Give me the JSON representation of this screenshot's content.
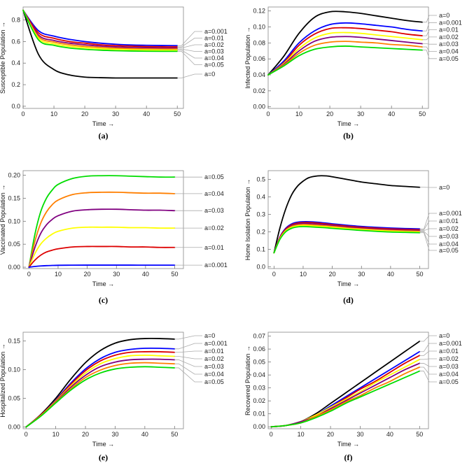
{
  "chart_data": [
    {
      "type": "line",
      "panel": "(a)",
      "xlabel": "Time →",
      "ylabel": "Susceptible Population →",
      "xlim": [
        0,
        52
      ],
      "ylim": [
        -0.02,
        0.92
      ],
      "xticks": [
        0,
        10,
        20,
        30,
        40,
        50
      ],
      "yticks": [
        0.0,
        0.2,
        0.4,
        0.6,
        0.8
      ],
      "ytick_labels": [
        "0.0",
        "0.2",
        "0.4",
        "0.6",
        "0.8"
      ],
      "x": [
        0,
        5,
        10,
        15,
        20,
        25,
        30,
        35,
        40,
        45,
        50
      ],
      "series": [
        {
          "name": "a=0",
          "color": "#000000",
          "values": [
            0.89,
            0.48,
            0.34,
            0.29,
            0.27,
            0.265,
            0.262,
            0.262,
            0.262,
            0.262,
            0.262
          ]
        },
        {
          "name": "a=0.001",
          "color": "#0000ff",
          "values": [
            0.89,
            0.7,
            0.65,
            0.62,
            0.6,
            0.585,
            0.575,
            0.568,
            0.565,
            0.563,
            0.562
          ]
        },
        {
          "name": "a=0.01",
          "color": "#dd0000",
          "values": [
            0.89,
            0.68,
            0.63,
            0.6,
            0.585,
            0.57,
            0.562,
            0.557,
            0.553,
            0.551,
            0.55
          ]
        },
        {
          "name": "a=0.02",
          "color": "#800080",
          "values": [
            0.89,
            0.66,
            0.61,
            0.585,
            0.57,
            0.558,
            0.55,
            0.545,
            0.542,
            0.54,
            0.54
          ]
        },
        {
          "name": "a=0.03",
          "color": "#ff7f00",
          "values": [
            0.89,
            0.645,
            0.595,
            0.57,
            0.555,
            0.545,
            0.538,
            0.534,
            0.531,
            0.53,
            0.53
          ]
        },
        {
          "name": "a=0.04",
          "color": "#ffff00",
          "values": [
            0.89,
            0.63,
            0.58,
            0.555,
            0.542,
            0.533,
            0.527,
            0.523,
            0.521,
            0.52,
            0.52
          ]
        },
        {
          "name": "a=0.05",
          "color": "#00dd00",
          "values": [
            0.89,
            0.615,
            0.565,
            0.54,
            0.528,
            0.52,
            0.515,
            0.512,
            0.51,
            0.509,
            0.509
          ]
        }
      ]
    },
    {
      "type": "line",
      "panel": "(b)",
      "xlabel": "Time →",
      "ylabel": "Infected Population →",
      "xlim": [
        0,
        52
      ],
      "ylim": [
        -0.002,
        0.125
      ],
      "xticks": [
        0,
        10,
        20,
        30,
        40,
        50
      ],
      "yticks": [
        0.0,
        0.02,
        0.04,
        0.06,
        0.08,
        0.1,
        0.12
      ],
      "ytick_labels": [
        "0.00",
        "0.02",
        "0.04",
        "0.06",
        "0.08",
        "0.10",
        "0.12"
      ],
      "x": [
        0,
        5,
        10,
        15,
        20,
        25,
        30,
        35,
        40,
        45,
        50
      ],
      "series": [
        {
          "name": "a=0",
          "color": "#000000",
          "values": [
            0.04,
            0.063,
            0.092,
            0.112,
            0.119,
            0.119,
            0.117,
            0.114,
            0.111,
            0.108,
            0.106
          ]
        },
        {
          "name": "a=0.001",
          "color": "#0000ff",
          "values": [
            0.04,
            0.057,
            0.08,
            0.095,
            0.103,
            0.105,
            0.104,
            0.102,
            0.1,
            0.097,
            0.095
          ]
        },
        {
          "name": "a=0.01",
          "color": "#dd0000",
          "values": [
            0.04,
            0.055,
            0.077,
            0.091,
            0.098,
            0.099,
            0.098,
            0.096,
            0.094,
            0.091,
            0.089
          ]
        },
        {
          "name": "a=0.02",
          "color": "#ffff00",
          "values": [
            0.04,
            0.054,
            0.073,
            0.086,
            0.092,
            0.093,
            0.092,
            0.09,
            0.088,
            0.086,
            0.084
          ]
        },
        {
          "name": "a=0.03",
          "color": "#800080",
          "values": [
            0.04,
            0.053,
            0.07,
            0.082,
            0.087,
            0.088,
            0.087,
            0.085,
            0.083,
            0.081,
            0.079
          ]
        },
        {
          "name": "a=0.04",
          "color": "#ff7f00",
          "values": [
            0.04,
            0.052,
            0.067,
            0.077,
            0.081,
            0.082,
            0.081,
            0.08,
            0.078,
            0.077,
            0.075
          ]
        },
        {
          "name": "a=0.05",
          "color": "#00dd00",
          "values": [
            0.04,
            0.051,
            0.064,
            0.072,
            0.075,
            0.076,
            0.075,
            0.074,
            0.073,
            0.072,
            0.071
          ]
        }
      ]
    },
    {
      "type": "line",
      "panel": "(c)",
      "xlabel": "Time →",
      "ylabel": "Vaccinated Population →",
      "xlim": [
        -2,
        53
      ],
      "ylim": [
        -0.003,
        0.21
      ],
      "xticks": [
        0,
        10,
        20,
        30,
        40,
        50
      ],
      "yticks": [
        0.0,
        0.05,
        0.1,
        0.15,
        0.2
      ],
      "ytick_labels": [
        "0.00",
        "0.05",
        "0.10",
        "0.15",
        "0.20"
      ],
      "x": [
        0,
        2,
        4,
        6,
        8,
        10,
        15,
        20,
        25,
        30,
        35,
        40,
        45,
        50
      ],
      "series": [
        {
          "name": "a=0.05",
          "color": "#00dd00",
          "values": [
            0,
            0.07,
            0.12,
            0.15,
            0.168,
            0.18,
            0.193,
            0.198,
            0.199,
            0.199,
            0.198,
            0.197,
            0.196,
            0.196
          ]
        },
        {
          "name": "a=0.04",
          "color": "#ff7f00",
          "values": [
            0,
            0.055,
            0.095,
            0.12,
            0.136,
            0.146,
            0.158,
            0.162,
            0.163,
            0.163,
            0.162,
            0.161,
            0.161,
            0.16
          ]
        },
        {
          "name": "a=0.03",
          "color": "#800080",
          "values": [
            0,
            0.042,
            0.073,
            0.092,
            0.104,
            0.112,
            0.122,
            0.125,
            0.126,
            0.126,
            0.125,
            0.124,
            0.124,
            0.123
          ]
        },
        {
          "name": "a=0.02",
          "color": "#ffff00",
          "values": [
            0,
            0.029,
            0.05,
            0.063,
            0.072,
            0.078,
            0.085,
            0.087,
            0.087,
            0.087,
            0.086,
            0.086,
            0.085,
            0.085
          ]
        },
        {
          "name": "a=0.01",
          "color": "#dd0000",
          "values": [
            0,
            0.015,
            0.026,
            0.033,
            0.037,
            0.04,
            0.044,
            0.045,
            0.045,
            0.045,
            0.044,
            0.044,
            0.043,
            0.043
          ]
        },
        {
          "name": "a=0.001",
          "color": "#0000ff",
          "values": [
            0,
            0.0015,
            0.0027,
            0.0034,
            0.0038,
            0.0041,
            0.0044,
            0.0045,
            0.0045,
            0.0045,
            0.0045,
            0.0044,
            0.0044,
            0.0044
          ]
        }
      ]
    },
    {
      "type": "line",
      "panel": "(d)",
      "xlabel": "Time →",
      "ylabel": "Home Isolation Population →",
      "xlim": [
        -2,
        53
      ],
      "ylim": [
        -0.01,
        0.55
      ],
      "xticks": [
        0,
        10,
        20,
        30,
        40,
        50
      ],
      "yticks": [
        0.0,
        0.1,
        0.2,
        0.3,
        0.4,
        0.5
      ],
      "ytick_labels": [
        "0.0",
        "0.1",
        "0.2",
        "0.3",
        "0.4",
        "0.5"
      ],
      "x": [
        0,
        2,
        4,
        6,
        8,
        10,
        12,
        15,
        18,
        20,
        25,
        30,
        35,
        40,
        45,
        50
      ],
      "series": [
        {
          "name": "a=0",
          "color": "#000000",
          "values": [
            0.08,
            0.22,
            0.33,
            0.41,
            0.46,
            0.49,
            0.51,
            0.52,
            0.52,
            0.515,
            0.5,
            0.485,
            0.475,
            0.465,
            0.46,
            0.455
          ]
        },
        {
          "name": "a=0.001",
          "color": "#0000ff",
          "values": [
            0.08,
            0.17,
            0.22,
            0.245,
            0.255,
            0.258,
            0.258,
            0.255,
            0.25,
            0.246,
            0.238,
            0.231,
            0.226,
            0.222,
            0.219,
            0.217
          ]
        },
        {
          "name": "a=0.01",
          "color": "#dd0000",
          "values": [
            0.08,
            0.168,
            0.216,
            0.24,
            0.25,
            0.253,
            0.253,
            0.25,
            0.245,
            0.241,
            0.233,
            0.226,
            0.221,
            0.217,
            0.214,
            0.212
          ]
        },
        {
          "name": "a=0.02",
          "color": "#800080",
          "values": [
            0.08,
            0.165,
            0.212,
            0.235,
            0.245,
            0.248,
            0.247,
            0.244,
            0.24,
            0.236,
            0.228,
            0.221,
            0.216,
            0.212,
            0.209,
            0.207
          ]
        },
        {
          "name": "a=0.03",
          "color": "#ff7f00",
          "values": [
            0.08,
            0.162,
            0.208,
            0.23,
            0.239,
            0.242,
            0.241,
            0.238,
            0.234,
            0.231,
            0.223,
            0.217,
            0.212,
            0.208,
            0.205,
            0.203
          ]
        },
        {
          "name": "a=0.04",
          "color": "#ffff00",
          "values": [
            0.08,
            0.159,
            0.204,
            0.225,
            0.234,
            0.236,
            0.235,
            0.232,
            0.229,
            0.226,
            0.219,
            0.213,
            0.208,
            0.204,
            0.201,
            0.199
          ]
        },
        {
          "name": "a=0.05",
          "color": "#00dd00",
          "values": [
            0.08,
            0.156,
            0.2,
            0.22,
            0.228,
            0.23,
            0.229,
            0.226,
            0.223,
            0.22,
            0.214,
            0.208,
            0.203,
            0.199,
            0.197,
            0.195
          ]
        }
      ]
    },
    {
      "type": "line",
      "panel": "(e)",
      "xlabel": "Time →",
      "ylabel": "Hospitalized Population →",
      "xlim": [
        -1,
        53
      ],
      "ylim": [
        -0.003,
        0.165
      ],
      "xticks": [
        0,
        10,
        20,
        30,
        40,
        50
      ],
      "yticks": [
        0.0,
        0.05,
        0.1,
        0.15
      ],
      "ytick_labels": [
        "0.00",
        "0.05",
        "0.10",
        "0.15"
      ],
      "x": [
        0,
        5,
        10,
        15,
        20,
        25,
        30,
        35,
        40,
        45,
        50
      ],
      "series": [
        {
          "name": "a=0",
          "color": "#000000",
          "values": [
            0.0,
            0.022,
            0.05,
            0.083,
            0.112,
            0.133,
            0.146,
            0.152,
            0.154,
            0.154,
            0.153
          ]
        },
        {
          "name": "a=0.001",
          "color": "#0000ff",
          "values": [
            0.0,
            0.021,
            0.047,
            0.076,
            0.101,
            0.119,
            0.13,
            0.135,
            0.137,
            0.137,
            0.136
          ]
        },
        {
          "name": "a=0.01",
          "color": "#dd0000",
          "values": [
            0.0,
            0.021,
            0.046,
            0.074,
            0.098,
            0.115,
            0.125,
            0.13,
            0.131,
            0.131,
            0.13
          ]
        },
        {
          "name": "a=0.02",
          "color": "#ffff00",
          "values": [
            0.0,
            0.02,
            0.045,
            0.071,
            0.094,
            0.11,
            0.119,
            0.124,
            0.125,
            0.124,
            0.123
          ]
        },
        {
          "name": "a=0.03",
          "color": "#800080",
          "values": [
            0.0,
            0.02,
            0.044,
            0.069,
            0.09,
            0.105,
            0.113,
            0.117,
            0.118,
            0.118,
            0.117
          ]
        },
        {
          "name": "a=0.04",
          "color": "#ff7f00",
          "values": [
            0.0,
            0.02,
            0.043,
            0.066,
            0.086,
            0.099,
            0.107,
            0.111,
            0.112,
            0.111,
            0.11
          ]
        },
        {
          "name": "a=0.05",
          "color": "#00dd00",
          "values": [
            0.0,
            0.019,
            0.042,
            0.064,
            0.082,
            0.094,
            0.101,
            0.104,
            0.105,
            0.104,
            0.103
          ]
        }
      ]
    },
    {
      "type": "line",
      "panel": "(f)",
      "xlabel": "Time →",
      "ylabel": "Recovered Population →",
      "xlim": [
        -1,
        53
      ],
      "ylim": [
        -0.0015,
        0.073
      ],
      "xticks": [
        0,
        10,
        20,
        30,
        40,
        50
      ],
      "yticks": [
        0.0,
        0.01,
        0.02,
        0.03,
        0.04,
        0.05,
        0.06,
        0.07
      ],
      "ytick_labels": [
        "0.00",
        "0.01",
        "0.02",
        "0.03",
        "0.04",
        "0.05",
        "0.06",
        "0.07"
      ],
      "x": [
        0,
        5,
        10,
        15,
        20,
        25,
        30,
        35,
        40,
        45,
        50
      ],
      "series": [
        {
          "name": "a=0",
          "color": "#000000",
          "values": [
            0.0,
            0.001,
            0.004,
            0.01,
            0.018,
            0.026,
            0.034,
            0.042,
            0.05,
            0.058,
            0.066
          ]
        },
        {
          "name": "a=0.001",
          "color": "#0000ff",
          "values": [
            0.0,
            0.001,
            0.004,
            0.009,
            0.016,
            0.023,
            0.03,
            0.037,
            0.044,
            0.051,
            0.058
          ]
        },
        {
          "name": "a=0.01",
          "color": "#dd0000",
          "values": [
            0.0,
            0.001,
            0.004,
            0.009,
            0.015,
            0.022,
            0.029,
            0.035,
            0.042,
            0.049,
            0.055
          ]
        },
        {
          "name": "a=0.02",
          "color": "#ffff00",
          "values": [
            0.0,
            0.001,
            0.004,
            0.009,
            0.015,
            0.021,
            0.027,
            0.034,
            0.04,
            0.046,
            0.052
          ]
        },
        {
          "name": "a=0.03",
          "color": "#800080",
          "values": [
            0.0,
            0.001,
            0.004,
            0.008,
            0.014,
            0.02,
            0.026,
            0.032,
            0.038,
            0.044,
            0.049
          ]
        },
        {
          "name": "a=0.04",
          "color": "#ff7f00",
          "values": [
            0.0,
            0.001,
            0.003,
            0.008,
            0.013,
            0.019,
            0.024,
            0.03,
            0.035,
            0.041,
            0.046
          ]
        },
        {
          "name": "a=0.05",
          "color": "#00dd00",
          "values": [
            0.0,
            0.001,
            0.003,
            0.007,
            0.012,
            0.018,
            0.023,
            0.028,
            0.033,
            0.038,
            0.043
          ]
        }
      ]
    }
  ]
}
